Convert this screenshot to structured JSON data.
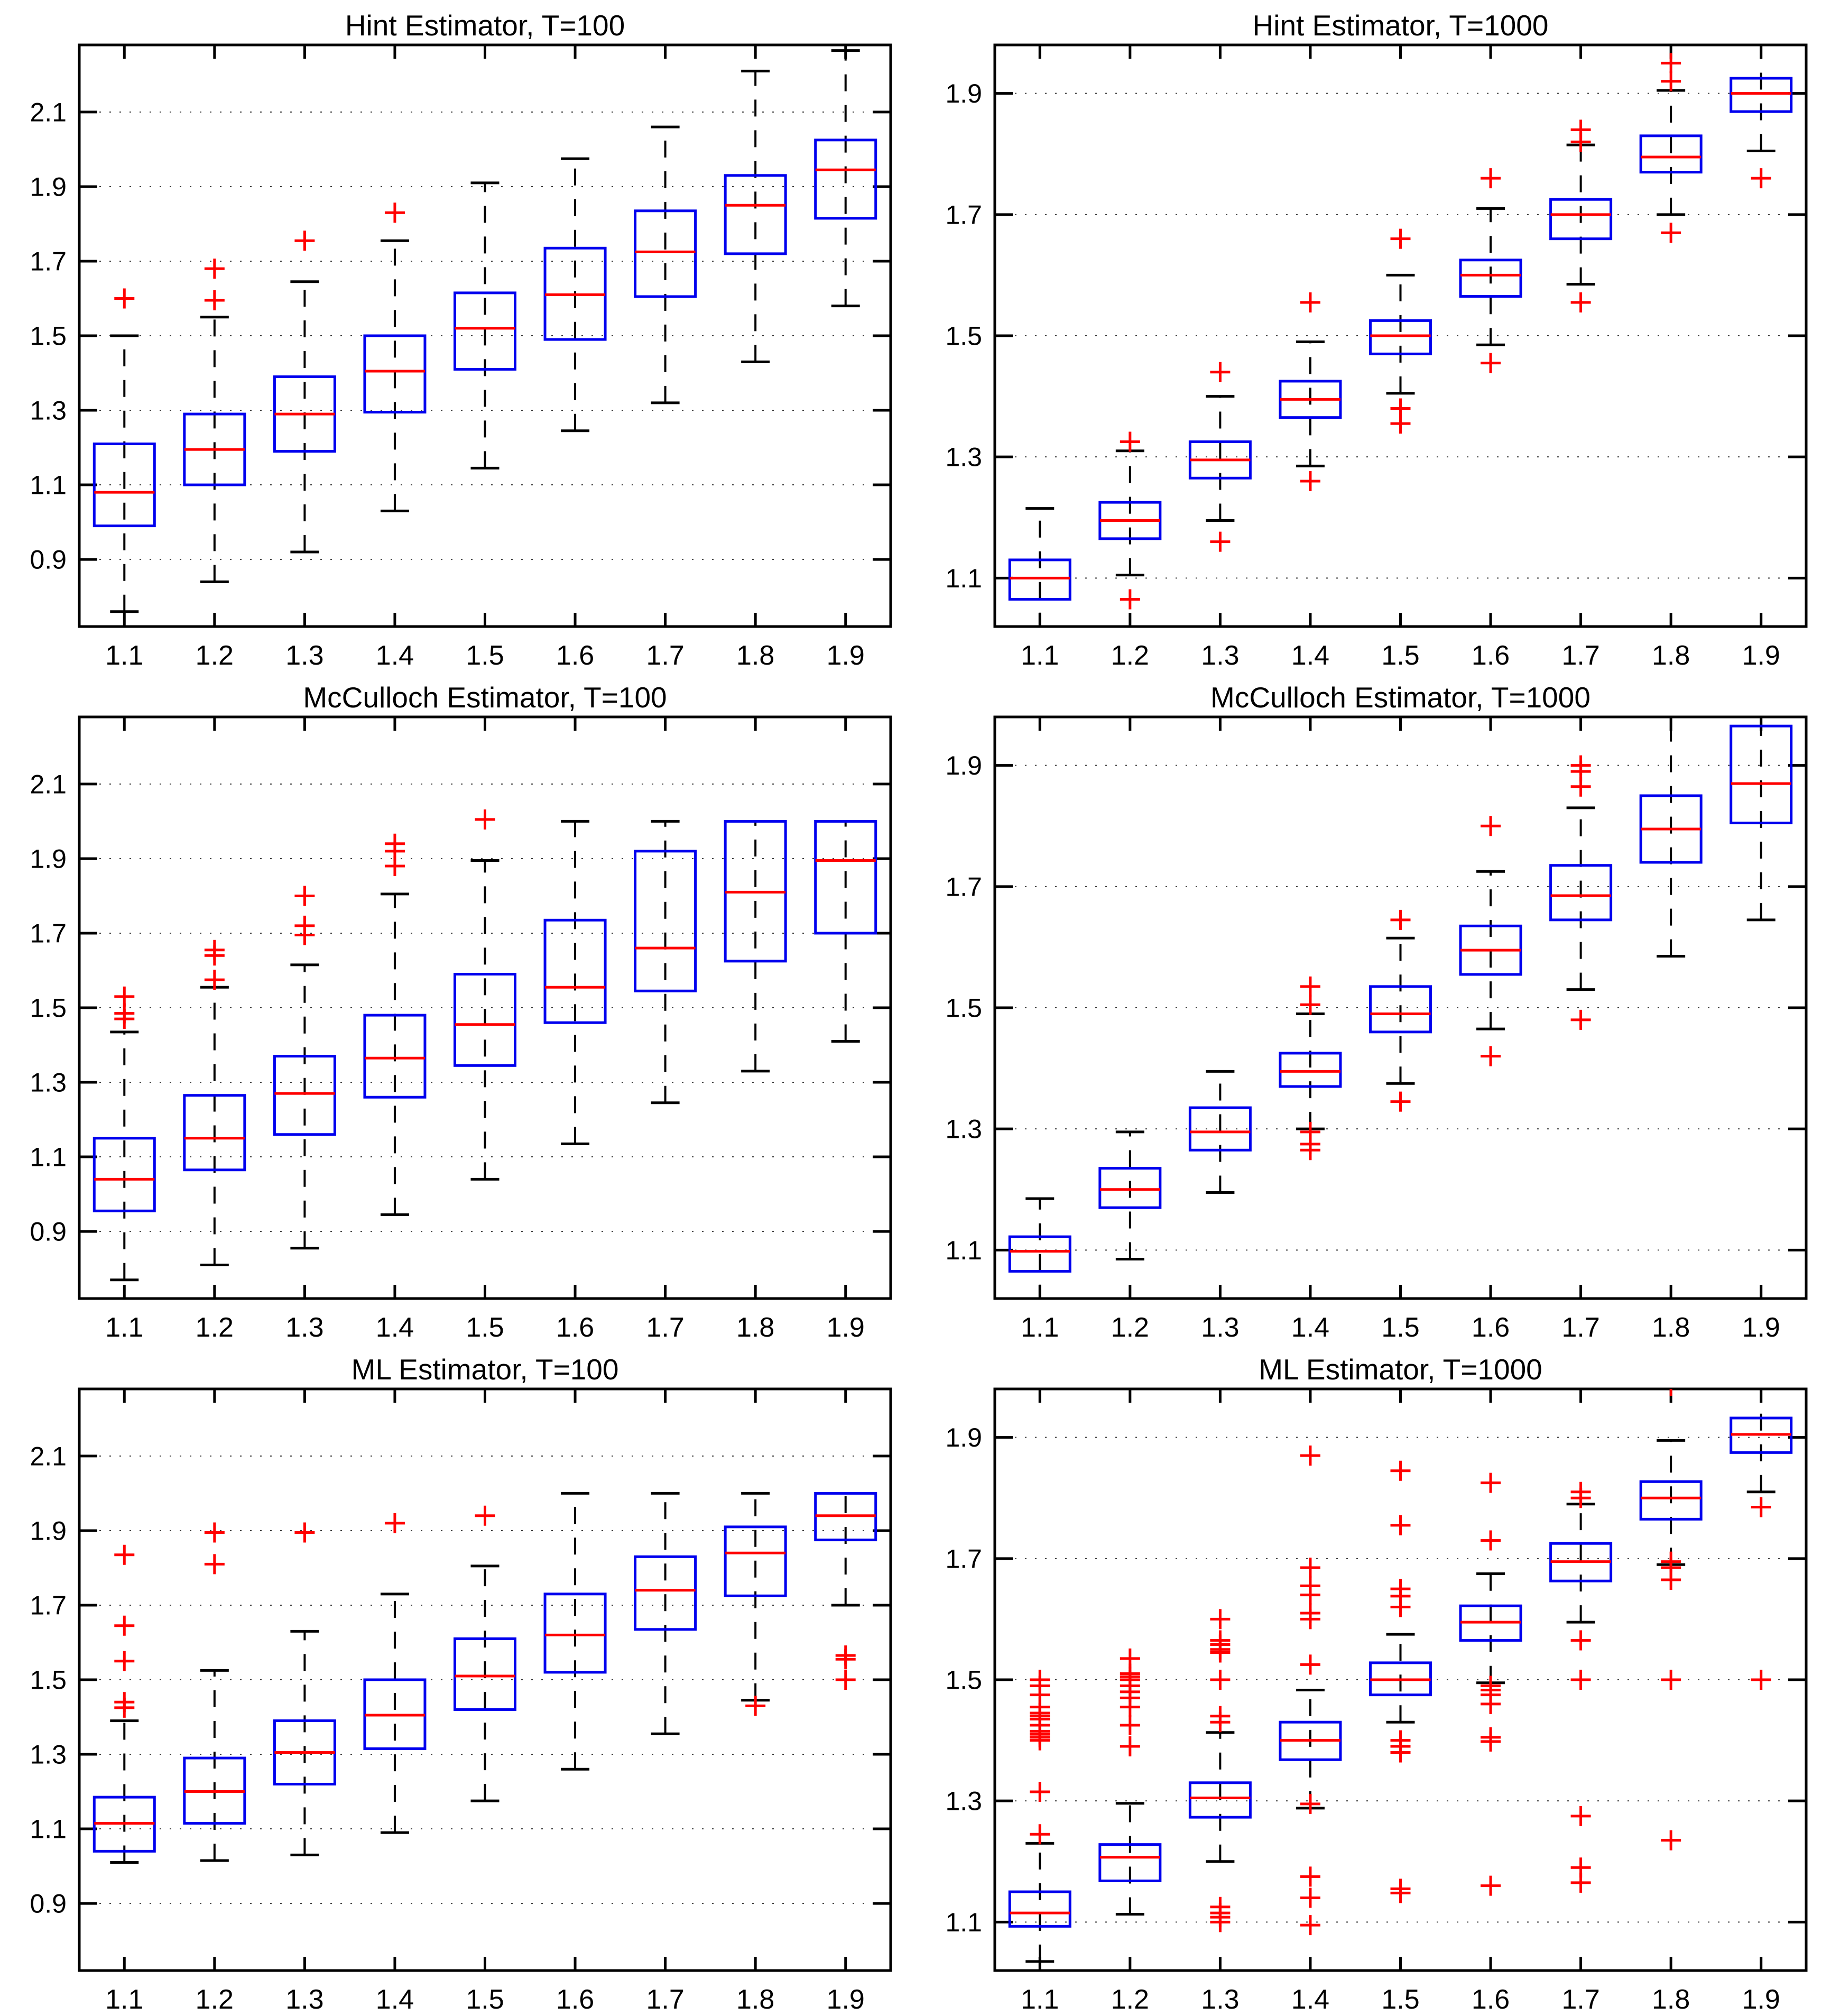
{
  "figure": {
    "rows": 3,
    "cols": 2,
    "background": "#ffffff"
  },
  "colors": {
    "box": "#0000ee",
    "median": "#ff0000",
    "outlier": "#ff0000",
    "whisker": "#000000",
    "cap": "#000000",
    "axis": "#000000",
    "grid": "#000000",
    "tick_label": "#000000",
    "title": "#000000"
  },
  "chart_data": [
    {
      "type": "boxplot",
      "title": "Hint Estimator, T=100",
      "xlabel": "",
      "ylabel": "",
      "categories": [
        "1.1",
        "1.2",
        "1.3",
        "1.4",
        "1.5",
        "1.6",
        "1.7",
        "1.8",
        "1.9"
      ],
      "ylim": [
        0.72,
        2.28
      ],
      "yticks": [
        0.9,
        1.1,
        1.3,
        1.5,
        1.7,
        1.9,
        2.1
      ],
      "grid": "y-dotted",
      "boxes": [
        {
          "lo": 0.76,
          "q1": 0.99,
          "med": 1.08,
          "q3": 1.21,
          "hi": 1.5,
          "out": [
            1.6
          ]
        },
        {
          "lo": 0.84,
          "q1": 1.1,
          "med": 1.195,
          "q3": 1.29,
          "hi": 1.55,
          "out": [
            1.595,
            1.68
          ]
        },
        {
          "lo": 0.92,
          "q1": 1.19,
          "med": 1.29,
          "q3": 1.39,
          "hi": 1.645,
          "out": [
            1.755
          ]
        },
        {
          "lo": 1.03,
          "q1": 1.295,
          "med": 1.405,
          "q3": 1.5,
          "hi": 1.755,
          "out": [
            1.83
          ]
        },
        {
          "lo": 1.145,
          "q1": 1.41,
          "med": 1.52,
          "q3": 1.615,
          "hi": 1.91,
          "out": []
        },
        {
          "lo": 1.245,
          "q1": 1.49,
          "med": 1.61,
          "q3": 1.735,
          "hi": 1.975,
          "out": []
        },
        {
          "lo": 1.32,
          "q1": 1.605,
          "med": 1.725,
          "q3": 1.835,
          "hi": 2.06,
          "out": []
        },
        {
          "lo": 1.43,
          "q1": 1.72,
          "med": 1.85,
          "q3": 1.93,
          "hi": 2.21,
          "out": []
        },
        {
          "lo": 1.58,
          "q1": 1.815,
          "med": 1.945,
          "q3": 2.025,
          "hi": 2.265,
          "out": []
        }
      ]
    },
    {
      "type": "boxplot",
      "title": "Hint Estimator, T=1000",
      "xlabel": "",
      "ylabel": "",
      "categories": [
        "1.1",
        "1.2",
        "1.3",
        "1.4",
        "1.5",
        "1.6",
        "1.7",
        "1.8",
        "1.9"
      ],
      "ylim": [
        1.02,
        1.98
      ],
      "yticks": [
        1.1,
        1.3,
        1.5,
        1.7,
        1.9
      ],
      "grid": "y-dotted",
      "boxes": [
        {
          "lo": 1.015,
          "q1": 1.065,
          "med": 1.1,
          "q3": 1.13,
          "hi": 1.215,
          "out": [],
          "cap_lo": false
        },
        {
          "lo": 1.105,
          "q1": 1.165,
          "med": 1.195,
          "q3": 1.225,
          "hi": 1.31,
          "out": [
            1.325,
            1.065
          ]
        },
        {
          "lo": 1.195,
          "q1": 1.265,
          "med": 1.295,
          "q3": 1.325,
          "hi": 1.4,
          "out": [
            1.44,
            1.16
          ]
        },
        {
          "lo": 1.285,
          "q1": 1.365,
          "med": 1.395,
          "q3": 1.425,
          "hi": 1.49,
          "out": [
            1.555,
            1.26
          ]
        },
        {
          "lo": 1.405,
          "q1": 1.47,
          "med": 1.5,
          "q3": 1.525,
          "hi": 1.6,
          "out": [
            1.66,
            1.38,
            1.355
          ]
        },
        {
          "lo": 1.485,
          "q1": 1.565,
          "med": 1.6,
          "q3": 1.625,
          "hi": 1.71,
          "out": [
            1.76,
            1.455
          ]
        },
        {
          "lo": 1.585,
          "q1": 1.66,
          "med": 1.7,
          "q3": 1.725,
          "hi": 1.815,
          "out": [
            1.84,
            1.82,
            1.555
          ]
        },
        {
          "lo": 1.7,
          "q1": 1.77,
          "med": 1.795,
          "q3": 1.83,
          "hi": 1.905,
          "out": [
            1.95,
            1.92,
            1.67
          ]
        },
        {
          "lo": 1.805,
          "q1": 1.87,
          "med": 1.9,
          "q3": 1.925,
          "hi": 1.975,
          "out": [
            1.76
          ]
        }
      ]
    },
    {
      "type": "boxplot",
      "title": "McCulloch Estimator, T=100",
      "xlabel": "",
      "ylabel": "",
      "categories": [
        "1.1",
        "1.2",
        "1.3",
        "1.4",
        "1.5",
        "1.6",
        "1.7",
        "1.8",
        "1.9"
      ],
      "ylim": [
        0.72,
        2.28
      ],
      "yticks": [
        0.9,
        1.1,
        1.3,
        1.5,
        1.7,
        1.9,
        2.1
      ],
      "grid": "y-dotted",
      "boxes": [
        {
          "lo": 0.77,
          "q1": 0.955,
          "med": 1.04,
          "q3": 1.15,
          "hi": 1.435,
          "out": [
            1.53,
            1.485,
            1.47
          ]
        },
        {
          "lo": 0.81,
          "q1": 1.065,
          "med": 1.15,
          "q3": 1.265,
          "hi": 1.555,
          "out": [
            1.575,
            1.655,
            1.64
          ]
        },
        {
          "lo": 0.855,
          "q1": 1.16,
          "med": 1.27,
          "q3": 1.37,
          "hi": 1.615,
          "out": [
            1.8,
            1.72,
            1.695
          ]
        },
        {
          "lo": 0.945,
          "q1": 1.26,
          "med": 1.365,
          "q3": 1.48,
          "hi": 1.805,
          "out": [
            1.94,
            1.92,
            1.88
          ]
        },
        {
          "lo": 1.04,
          "q1": 1.345,
          "med": 1.455,
          "q3": 1.59,
          "hi": 1.895,
          "out": [
            2.005
          ]
        },
        {
          "lo": 1.135,
          "q1": 1.46,
          "med": 1.555,
          "q3": 1.735,
          "hi": 2.0,
          "out": []
        },
        {
          "lo": 1.245,
          "q1": 1.545,
          "med": 1.66,
          "q3": 1.92,
          "hi": 2.0,
          "out": []
        },
        {
          "lo": 1.33,
          "q1": 1.625,
          "med": 1.81,
          "q3": 2.0,
          "hi": 2.0,
          "out": []
        },
        {
          "lo": 1.41,
          "q1": 1.7,
          "med": 1.895,
          "q3": 2.0,
          "hi": 2.0,
          "out": []
        }
      ]
    },
    {
      "type": "boxplot",
      "title": "McCulloch Estimator, T=1000",
      "xlabel": "",
      "ylabel": "",
      "categories": [
        "1.1",
        "1.2",
        "1.3",
        "1.4",
        "1.5",
        "1.6",
        "1.7",
        "1.8",
        "1.9"
      ],
      "ylim": [
        1.02,
        1.98
      ],
      "yticks": [
        1.1,
        1.3,
        1.5,
        1.7,
        1.9
      ],
      "grid": "y-dotted",
      "boxes": [
        {
          "lo": 1.015,
          "q1": 1.065,
          "med": 1.098,
          "q3": 1.122,
          "hi": 1.185,
          "out": [],
          "cap_lo": false
        },
        {
          "lo": 1.085,
          "q1": 1.17,
          "med": 1.2,
          "q3": 1.235,
          "hi": 1.295,
          "out": []
        },
        {
          "lo": 1.195,
          "q1": 1.265,
          "med": 1.295,
          "q3": 1.335,
          "hi": 1.395,
          "out": []
        },
        {
          "lo": 1.3,
          "q1": 1.37,
          "med": 1.395,
          "q3": 1.425,
          "hi": 1.49,
          "out": [
            1.535,
            1.505,
            1.295,
            1.275,
            1.265
          ]
        },
        {
          "lo": 1.375,
          "q1": 1.46,
          "med": 1.49,
          "q3": 1.535,
          "hi": 1.615,
          "out": [
            1.645,
            1.345
          ]
        },
        {
          "lo": 1.465,
          "q1": 1.555,
          "med": 1.595,
          "q3": 1.635,
          "hi": 1.725,
          "out": [
            1.8,
            1.42
          ]
        },
        {
          "lo": 1.53,
          "q1": 1.645,
          "med": 1.685,
          "q3": 1.735,
          "hi": 1.83,
          "out": [
            1.9,
            1.89,
            1.865,
            1.48
          ]
        },
        {
          "lo": 1.585,
          "q1": 1.74,
          "med": 1.795,
          "q3": 1.85,
          "hi": 1.995,
          "out": [],
          "cap_hi": false
        },
        {
          "lo": 1.645,
          "q1": 1.805,
          "med": 1.87,
          "q3": 1.965,
          "hi": 1.978,
          "out": []
        }
      ]
    },
    {
      "type": "boxplot",
      "title": "ML Estimator, T=100",
      "xlabel": "",
      "ylabel": "",
      "categories": [
        "1.1",
        "1.2",
        "1.3",
        "1.4",
        "1.5",
        "1.6",
        "1.7",
        "1.8",
        "1.9"
      ],
      "ylim": [
        0.72,
        2.28
      ],
      "yticks": [
        0.9,
        1.1,
        1.3,
        1.5,
        1.7,
        1.9,
        2.1
      ],
      "grid": "y-dotted",
      "boxes": [
        {
          "lo": 1.01,
          "q1": 1.04,
          "med": 1.115,
          "q3": 1.185,
          "hi": 1.39,
          "out": [
            1.835,
            1.645,
            1.55,
            1.44,
            1.425
          ]
        },
        {
          "lo": 1.015,
          "q1": 1.115,
          "med": 1.2,
          "q3": 1.29,
          "hi": 1.525,
          "out": [
            1.895,
            1.81
          ]
        },
        {
          "lo": 1.03,
          "q1": 1.22,
          "med": 1.305,
          "q3": 1.39,
          "hi": 1.63,
          "out": [
            1.895
          ]
        },
        {
          "lo": 1.09,
          "q1": 1.315,
          "med": 1.405,
          "q3": 1.5,
          "hi": 1.73,
          "out": [
            1.92
          ]
        },
        {
          "lo": 1.175,
          "q1": 1.42,
          "med": 1.51,
          "q3": 1.61,
          "hi": 1.805,
          "out": [
            1.94
          ]
        },
        {
          "lo": 1.26,
          "q1": 1.52,
          "med": 1.62,
          "q3": 1.73,
          "hi": 2.0,
          "out": []
        },
        {
          "lo": 1.355,
          "q1": 1.635,
          "med": 1.74,
          "q3": 1.83,
          "hi": 2.0,
          "out": []
        },
        {
          "lo": 1.445,
          "q1": 1.725,
          "med": 1.84,
          "q3": 1.91,
          "hi": 2.0,
          "out": [
            1.43
          ]
        },
        {
          "lo": 1.7,
          "q1": 1.875,
          "med": 1.94,
          "q3": 2.0,
          "hi": 2.0,
          "out": [
            1.565,
            1.555,
            1.5
          ]
        }
      ]
    },
    {
      "type": "boxplot",
      "title": "ML Estimator, T=1000",
      "xlabel": "",
      "ylabel": "",
      "categories": [
        "1.1",
        "1.2",
        "1.3",
        "1.4",
        "1.5",
        "1.6",
        "1.7",
        "1.8",
        "1.9"
      ],
      "ylim": [
        1.02,
        1.98
      ],
      "yticks": [
        1.1,
        1.3,
        1.5,
        1.7,
        1.9
      ],
      "grid": "y-dotted",
      "boxes": [
        {
          "lo": 1.035,
          "q1": 1.093,
          "med": 1.115,
          "q3": 1.15,
          "hi": 1.23,
          "out": [
            1.5,
            1.49,
            1.475,
            1.455,
            1.445,
            1.44,
            1.435,
            1.425,
            1.415,
            1.41,
            1.405,
            1.4,
            1.315,
            1.245
          ]
        },
        {
          "lo": 1.113,
          "q1": 1.168,
          "med": 1.207,
          "q3": 1.228,
          "hi": 1.296,
          "out": [
            1.535,
            1.51,
            1.505,
            1.5,
            1.49,
            1.48,
            1.47,
            1.455,
            1.425,
            1.39
          ]
        },
        {
          "lo": 1.2,
          "q1": 1.273,
          "med": 1.305,
          "q3": 1.33,
          "hi": 1.413,
          "out": [
            1.6,
            1.565,
            1.558,
            1.55,
            1.545,
            1.5,
            1.44,
            1.43,
            1.125,
            1.115,
            1.108,
            1.1
          ]
        },
        {
          "lo": 1.288,
          "q1": 1.368,
          "med": 1.4,
          "q3": 1.43,
          "hi": 1.483,
          "out": [
            1.87,
            1.685,
            1.655,
            1.64,
            1.61,
            1.6,
            1.525,
            1.295,
            1.175,
            1.14,
            1.095
          ]
        },
        {
          "lo": 1.43,
          "q1": 1.475,
          "med": 1.5,
          "q3": 1.528,
          "hi": 1.575,
          "out": [
            1.845,
            1.755,
            1.65,
            1.638,
            1.62,
            1.4,
            1.39,
            1.38,
            1.155,
            1.148
          ]
        },
        {
          "lo": 1.495,
          "q1": 1.565,
          "med": 1.595,
          "q3": 1.622,
          "hi": 1.675,
          "out": [
            1.825,
            1.73,
            1.49,
            1.483,
            1.475,
            1.46,
            1.405,
            1.398,
            1.16
          ]
        },
        {
          "lo": 1.595,
          "q1": 1.663,
          "med": 1.695,
          "q3": 1.725,
          "hi": 1.79,
          "out": [
            1.81,
            1.8,
            1.565,
            1.5,
            1.275,
            1.19,
            1.165
          ]
        },
        {
          "lo": 1.69,
          "q1": 1.765,
          "med": 1.8,
          "q3": 1.827,
          "hi": 1.895,
          "out": [
            1.985,
            1.695,
            1.685,
            1.665,
            1.5,
            1.235
          ]
        },
        {
          "lo": 1.81,
          "q1": 1.875,
          "med": 1.905,
          "q3": 1.932,
          "hi": 1.975,
          "out": [
            1.785,
            1.5
          ]
        }
      ]
    }
  ]
}
